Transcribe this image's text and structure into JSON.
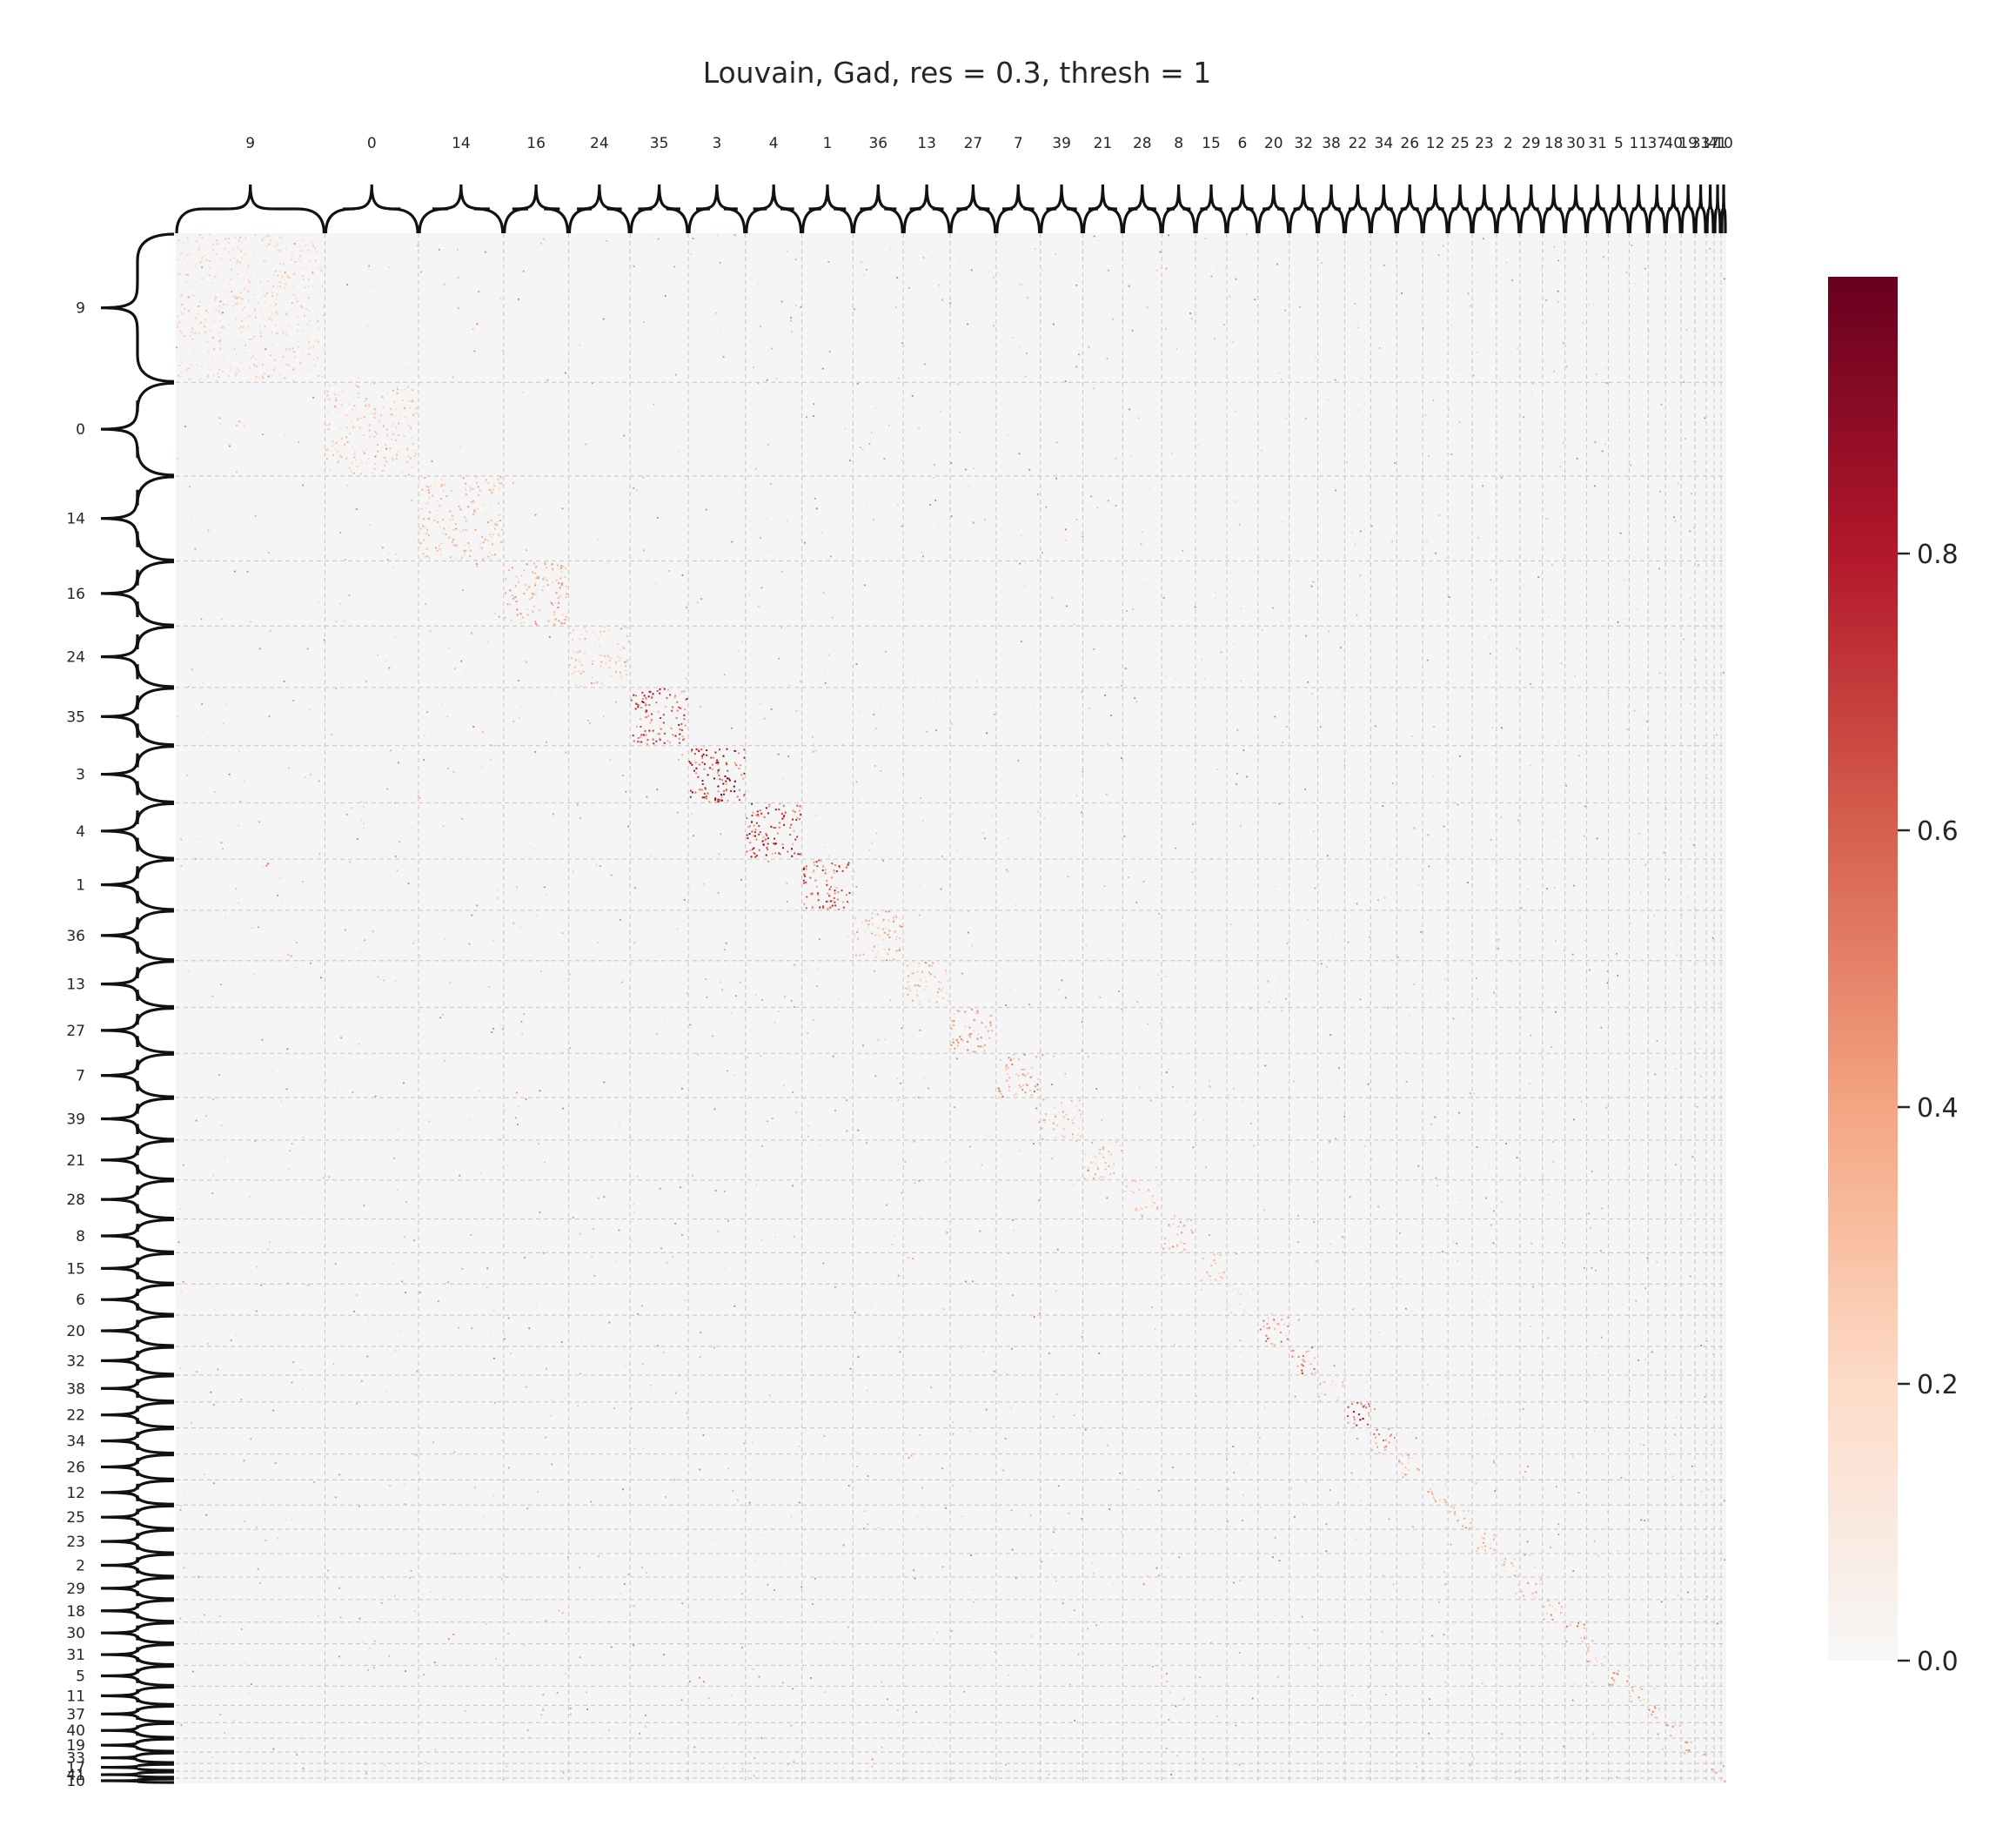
{
  "title": "Louvain, Gad, res = 0.3, thresh = 1",
  "chart_data": {
    "type": "heatmap",
    "title": "Louvain, Gad, res = 0.3, thresh = 1",
    "cluster_order": [
      "9",
      "0",
      "14",
      "16",
      "24",
      "35",
      "3",
      "4",
      "1",
      "36",
      "13",
      "27",
      "7",
      "39",
      "21",
      "28",
      "8",
      "15",
      "6",
      "20",
      "32",
      "38",
      "22",
      "34",
      "26",
      "12",
      "25",
      "23",
      "2",
      "29",
      "18",
      "30",
      "31",
      "5",
      "11",
      "37",
      "40",
      "19",
      "33",
      "17",
      "41",
      "10"
    ],
    "cluster_sizes": [
      172,
      108,
      98,
      75,
      71,
      67,
      66,
      65,
      59,
      58,
      54,
      53,
      51,
      49,
      46,
      45,
      39,
      36,
      36,
      36,
      33,
      31,
      30,
      30,
      30,
      29,
      28,
      28,
      27,
      26,
      26,
      25,
      25,
      24,
      22,
      20,
      18,
      16,
      13,
      9,
      8,
      6
    ],
    "diagonal_intensity": [
      0.25,
      0.3,
      0.35,
      0.4,
      0.3,
      0.75,
      0.85,
      0.8,
      0.7,
      0.4,
      0.35,
      0.45,
      0.5,
      0.35,
      0.35,
      0.3,
      0.4,
      0.3,
      0.2,
      0.5,
      0.6,
      0.35,
      0.8,
      0.5,
      0.4,
      0.4,
      0.4,
      0.4,
      0.35,
      0.4,
      0.45,
      0.5,
      0.4,
      0.45,
      0.4,
      0.45,
      0.4,
      0.45,
      0.4,
      0.4,
      0.4,
      0.4
    ],
    "colorbar": {
      "colormap": "RdBu_r (upper half)",
      "range": [
        0,
        1
      ],
      "ticks": [
        "0.0",
        "0.2",
        "0.4",
        "0.6",
        "0.8"
      ],
      "colors": [
        "#f7f7f7",
        "#fddbc7",
        "#f4a582",
        "#d6604d",
        "#b2182b",
        "#67001f"
      ]
    },
    "gridlines": true,
    "background_color": "#f5f5f5"
  }
}
